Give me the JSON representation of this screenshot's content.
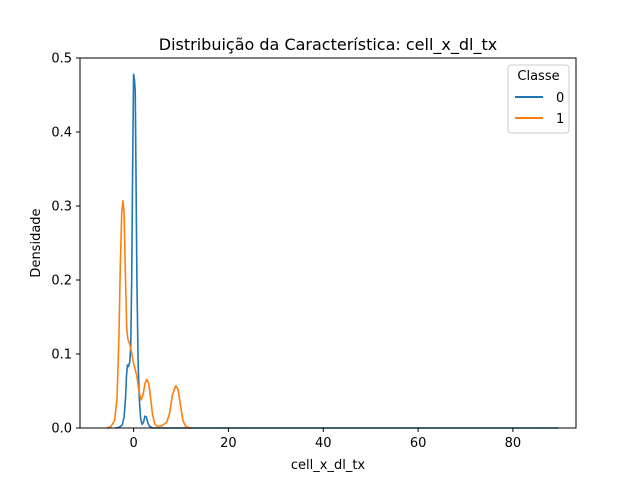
{
  "chart_data": {
    "type": "line",
    "title": "Distribuição da Característica: cell_x_dl_tx",
    "xlabel": "cell_x_dl_tx",
    "ylabel": "Densidade",
    "xlim": [
      -11.3,
      93.3
    ],
    "ylim": [
      0,
      0.5
    ],
    "xticks": [
      0,
      20,
      40,
      60,
      80
    ],
    "yticks": [
      0.0,
      0.1,
      0.2,
      0.3,
      0.4,
      0.5
    ],
    "xtick_labels": [
      "0",
      "20",
      "40",
      "60",
      "80"
    ],
    "ytick_labels": [
      "0.0",
      "0.1",
      "0.2",
      "0.3",
      "0.4",
      "0.5"
    ],
    "grid": false,
    "legend": {
      "title": "Classe",
      "placement": "top-right"
    },
    "series": [
      {
        "name": "0",
        "color": "#1f77b4",
        "points": [
          [
            -3.8,
            0.0
          ],
          [
            -3.0,
            0.001
          ],
          [
            -2.4,
            0.004
          ],
          [
            -2.0,
            0.015
          ],
          [
            -1.7,
            0.04
          ],
          [
            -1.5,
            0.07
          ],
          [
            -1.3,
            0.085
          ],
          [
            -1.05,
            0.083
          ],
          [
            -0.8,
            0.09
          ],
          [
            -0.6,
            0.11
          ],
          [
            -0.4,
            0.2
          ],
          [
            -0.2,
            0.35
          ],
          [
            0.0,
            0.478
          ],
          [
            0.2,
            0.47
          ],
          [
            0.35,
            0.455
          ],
          [
            0.5,
            0.35
          ],
          [
            0.7,
            0.2
          ],
          [
            0.95,
            0.09
          ],
          [
            1.2,
            0.04
          ],
          [
            1.5,
            0.012
          ],
          [
            1.8,
            0.005
          ],
          [
            2.1,
            0.008
          ],
          [
            2.4,
            0.016
          ],
          [
            2.7,
            0.015
          ],
          [
            3.0,
            0.007
          ],
          [
            3.4,
            0.002
          ],
          [
            4.0,
            0.0
          ],
          [
            10.0,
            0.0
          ],
          [
            30.0,
            0.0
          ],
          [
            60.0,
            0.0
          ],
          [
            89.5,
            0.0
          ]
        ]
      },
      {
        "name": "1",
        "color": "#ff7f0e",
        "points": [
          [
            -5.5,
            0.0
          ],
          [
            -4.8,
            0.002
          ],
          [
            -4.0,
            0.01
          ],
          [
            -3.5,
            0.04
          ],
          [
            -3.1,
            0.12
          ],
          [
            -2.8,
            0.22
          ],
          [
            -2.5,
            0.29
          ],
          [
            -2.25,
            0.307
          ],
          [
            -2.0,
            0.29
          ],
          [
            -1.7,
            0.2
          ],
          [
            -1.45,
            0.135
          ],
          [
            -1.2,
            0.12
          ],
          [
            -0.9,
            0.115
          ],
          [
            -0.5,
            0.105
          ],
          [
            -0.1,
            0.09
          ],
          [
            0.3,
            0.08
          ],
          [
            0.7,
            0.07
          ],
          [
            1.0,
            0.055
          ],
          [
            1.3,
            0.045
          ],
          [
            1.6,
            0.038
          ],
          [
            2.0,
            0.045
          ],
          [
            2.4,
            0.06
          ],
          [
            2.8,
            0.066
          ],
          [
            3.2,
            0.06
          ],
          [
            3.6,
            0.04
          ],
          [
            4.0,
            0.018
          ],
          [
            4.5,
            0.005
          ],
          [
            5.0,
            0.002
          ],
          [
            6.0,
            0.003
          ],
          [
            7.0,
            0.008
          ],
          [
            7.6,
            0.02
          ],
          [
            8.2,
            0.045
          ],
          [
            8.9,
            0.057
          ],
          [
            9.4,
            0.052
          ],
          [
            9.9,
            0.03
          ],
          [
            10.4,
            0.01
          ],
          [
            11.0,
            0.002
          ],
          [
            12.0,
            0.0
          ]
        ]
      }
    ]
  }
}
